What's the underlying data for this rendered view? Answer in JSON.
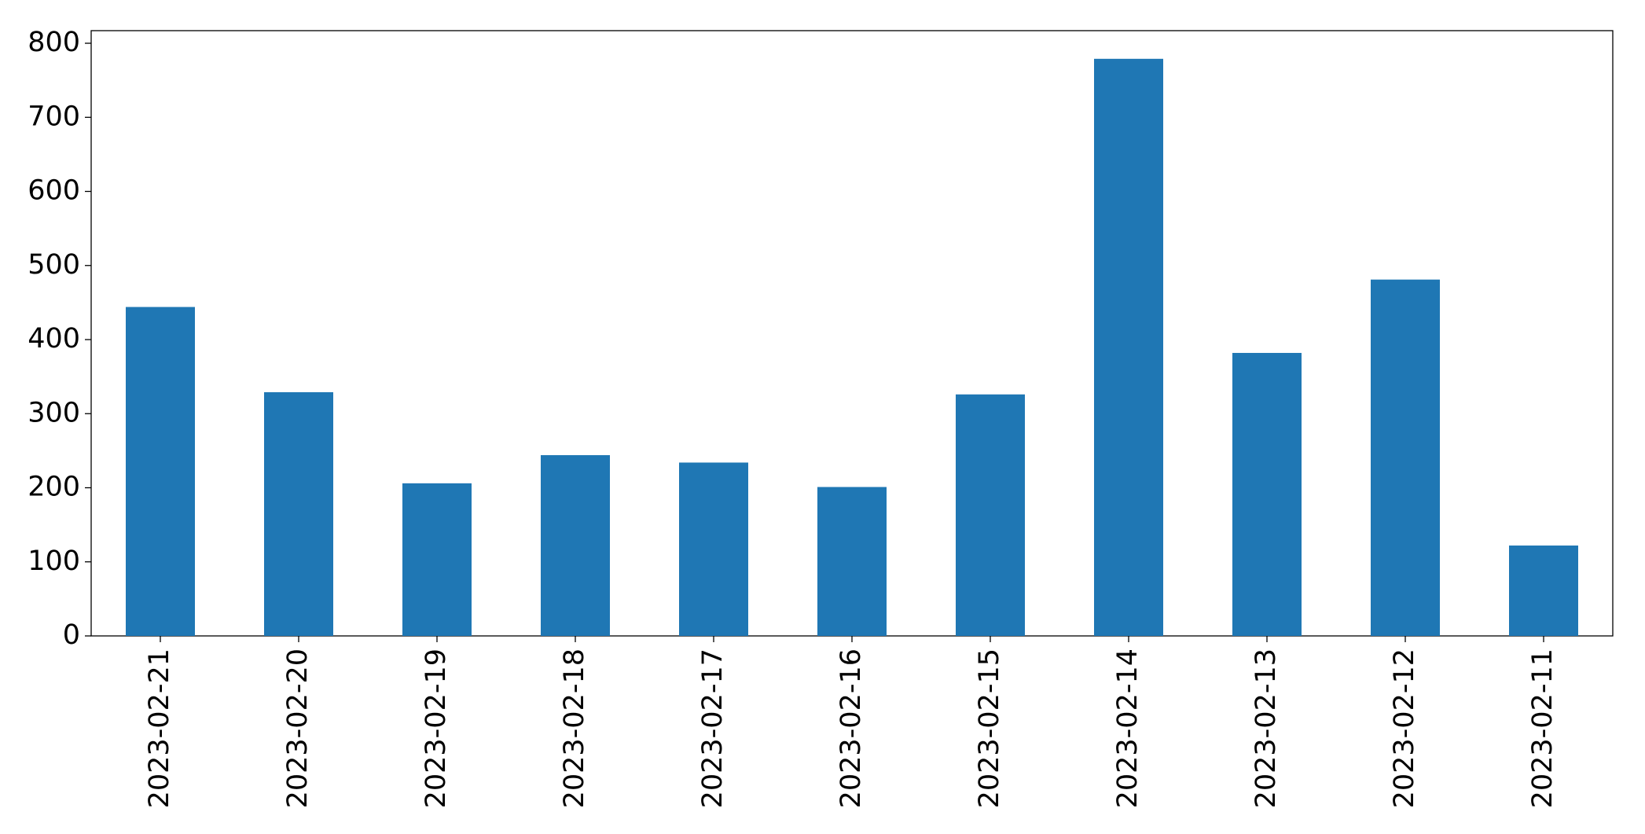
{
  "chart_data": {
    "type": "bar",
    "categories": [
      "2023-02-21",
      "2023-02-20",
      "2023-02-19",
      "2023-02-18",
      "2023-02-17",
      "2023-02-16",
      "2023-02-15",
      "2023-02-14",
      "2023-02-13",
      "2023-02-12",
      "2023-02-11"
    ],
    "values": [
      444,
      329,
      206,
      244,
      234,
      201,
      326,
      779,
      382,
      481,
      122
    ],
    "color": "#1f77b4",
    "ylim": [
      0,
      817
    ],
    "yticks": [
      0,
      100,
      200,
      300,
      400,
      500,
      600,
      700,
      800
    ],
    "grid": false
  }
}
